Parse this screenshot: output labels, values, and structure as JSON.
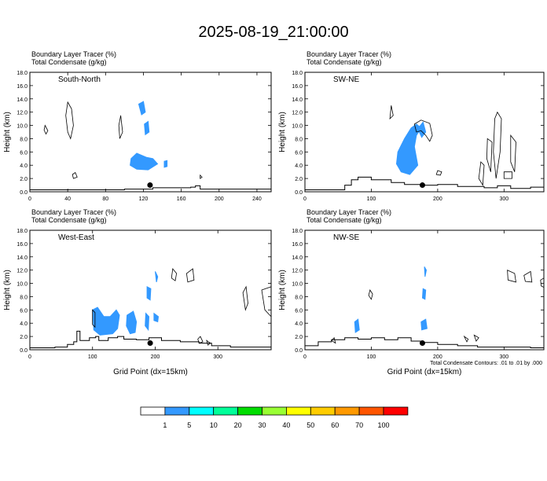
{
  "title": "2025-08-19_21:00:00",
  "colors": {
    "tracer_fill": "#3399ff",
    "terrain": "#000000",
    "contour": "#000000",
    "marker": "#000000"
  },
  "chart_data": [
    {
      "type": "area",
      "panel_label": "South-North",
      "header_lines": [
        "Boundary Layer Tracer   (%)",
        "Total Condensate   (g/kg)"
      ],
      "xlabel": "",
      "ylabel": "Height (km)",
      "xlim": [
        0,
        255
      ],
      "ylim": [
        0,
        18
      ],
      "x_ticks": [
        0,
        40,
        80,
        120,
        160,
        200,
        240
      ],
      "y_ticks": [
        "0.0",
        "2.0",
        "4.0",
        "6.0",
        "8.0",
        "10.0",
        "12.0",
        "14.0",
        "16.0",
        "18.0"
      ],
      "marker": {
        "x": 127,
        "y": 1.0
      },
      "terrain": [
        [
          0,
          0.3
        ],
        [
          50,
          0.3
        ],
        [
          100,
          0.4
        ],
        [
          120,
          0.4
        ],
        [
          130,
          0.6
        ],
        [
          150,
          0.6
        ],
        [
          170,
          0.7
        ],
        [
          175,
          0.9
        ],
        [
          180,
          0.4
        ],
        [
          255,
          0.4
        ]
      ],
      "tracer_regions": [
        [
          [
            107,
            5.0
          ],
          [
            113,
            5.8
          ],
          [
            123,
            5.2
          ],
          [
            130,
            5.0
          ],
          [
            135,
            4.2
          ],
          [
            125,
            3.3
          ],
          [
            113,
            3.4
          ],
          [
            106,
            4.0
          ]
        ],
        [
          [
            115,
            13.2
          ],
          [
            120,
            13.6
          ],
          [
            122,
            12.0
          ],
          [
            118,
            11.6
          ]
        ],
        [
          [
            121,
            10.2
          ],
          [
            125,
            10.6
          ],
          [
            126,
            9.0
          ],
          [
            122,
            8.6
          ]
        ],
        [
          [
            142,
            4.6
          ],
          [
            145,
            4.7
          ],
          [
            145,
            3.8
          ],
          [
            142,
            3.7
          ]
        ]
      ],
      "contours": [
        [
          [
            40,
            13.5
          ],
          [
            44,
            12.5
          ],
          [
            46,
            10.0
          ],
          [
            43,
            8.0
          ],
          [
            40,
            9.0
          ],
          [
            38,
            11.5
          ]
        ],
        [
          [
            16,
            10.0
          ],
          [
            19,
            9.2
          ],
          [
            17,
            8.7
          ],
          [
            15,
            9.3
          ]
        ],
        [
          [
            96,
            11.5
          ],
          [
            98,
            9.0
          ],
          [
            95,
            8.0
          ],
          [
            94,
            10.0
          ]
        ],
        [
          [
            45,
            2.6
          ],
          [
            48,
            2.9
          ],
          [
            50,
            2.2
          ],
          [
            46,
            2.0
          ]
        ],
        [
          [
            180,
            2.5
          ],
          [
            182,
            2.2
          ],
          [
            180,
            2.0
          ]
        ]
      ]
    },
    {
      "type": "area",
      "panel_label": "SW-NE",
      "header_lines": [
        "Boundary Layer Tracer   (%)",
        "Total Condensate   (g/kg)"
      ],
      "xlabel": "",
      "ylabel": "Height (km)",
      "xlim": [
        0,
        360
      ],
      "ylim": [
        0,
        18
      ],
      "x_ticks": [
        0,
        100,
        200,
        300
      ],
      "y_ticks": [
        "0.0",
        "2.0",
        "4.0",
        "6.0",
        "8.0",
        "10.0",
        "12.0",
        "14.0",
        "16.0",
        "18.0"
      ],
      "marker": {
        "x": 177,
        "y": 1.0
      },
      "terrain": [
        [
          0,
          0.3
        ],
        [
          40,
          0.3
        ],
        [
          60,
          1.0
        ],
        [
          70,
          1.8
        ],
        [
          80,
          2.2
        ],
        [
          100,
          1.8
        ],
        [
          130,
          1.4
        ],
        [
          150,
          1.1
        ],
        [
          175,
          1.0
        ],
        [
          200,
          1.1
        ],
        [
          230,
          0.8
        ],
        [
          270,
          0.6
        ],
        [
          290,
          0.9
        ],
        [
          310,
          0.5
        ],
        [
          340,
          0.7
        ],
        [
          360,
          1.0
        ]
      ],
      "tracer_regions": [
        [
          [
            140,
            6.0
          ],
          [
            150,
            8.0
          ],
          [
            160,
            9.6
          ],
          [
            168,
            10.2
          ],
          [
            175,
            9.6
          ],
          [
            168,
            8.5
          ],
          [
            165,
            6.8
          ],
          [
            170,
            4.0
          ],
          [
            158,
            2.6
          ],
          [
            145,
            3.0
          ],
          [
            138,
            4.2
          ]
        ],
        [
          [
            170,
            9.5
          ],
          [
            178,
            10.5
          ],
          [
            182,
            9.0
          ],
          [
            176,
            8.2
          ]
        ]
      ],
      "contours": [
        [
          [
            165,
            10.2
          ],
          [
            175,
            10.8
          ],
          [
            188,
            10.3
          ],
          [
            192,
            8.5
          ],
          [
            188,
            7.6
          ],
          [
            182,
            8.5
          ],
          [
            175,
            9.2
          ],
          [
            168,
            9.0
          ]
        ],
        [
          [
            130,
            13.0
          ],
          [
            133,
            11.5
          ],
          [
            128,
            11.0
          ]
        ],
        [
          [
            290,
            12.0
          ],
          [
            296,
            11.0
          ],
          [
            294,
            6.0
          ],
          [
            288,
            2.0
          ],
          [
            284,
            6.0
          ],
          [
            286,
            11.0
          ]
        ],
        [
          [
            275,
            8.0
          ],
          [
            282,
            7.5
          ],
          [
            280,
            3.0
          ],
          [
            274,
            5.0
          ]
        ],
        [
          [
            310,
            8.5
          ],
          [
            318,
            7.5
          ],
          [
            316,
            3.0
          ],
          [
            310,
            4.5
          ]
        ],
        [
          [
            265,
            4.5
          ],
          [
            270,
            4.0
          ],
          [
            268,
            1.0
          ],
          [
            262,
            2.0
          ]
        ],
        [
          [
            300,
            3.0
          ],
          [
            312,
            3.0
          ],
          [
            312,
            2.0
          ],
          [
            300,
            2.0
          ]
        ],
        [
          [
            200,
            3.2
          ],
          [
            206,
            3.0
          ],
          [
            204,
            2.5
          ],
          [
            198,
            2.6
          ]
        ]
      ]
    },
    {
      "type": "area",
      "panel_label": "West-East",
      "header_lines": [
        "Boundary Layer Tracer   (%)",
        "Total Condensate   (g/kg)"
      ],
      "xlabel": "Grid Point (dx=15km)",
      "ylabel": "Height (km)",
      "xlim": [
        0,
        385
      ],
      "ylim": [
        0,
        18
      ],
      "x_ticks": [
        0,
        100,
        200,
        300
      ],
      "y_ticks": [
        "0.0",
        "2.0",
        "4.0",
        "6.0",
        "8.0",
        "10.0",
        "12.0",
        "14.0",
        "16.0",
        "18.0"
      ],
      "marker": {
        "x": 192,
        "y": 1.0
      },
      "terrain": [
        [
          0,
          0.3
        ],
        [
          40,
          0.4
        ],
        [
          60,
          0.8
        ],
        [
          70,
          1.2
        ],
        [
          75,
          2.8
        ],
        [
          80,
          1.4
        ],
        [
          95,
          1.8
        ],
        [
          105,
          2.0
        ],
        [
          110,
          1.4
        ],
        [
          125,
          1.8
        ],
        [
          140,
          2.0
        ],
        [
          150,
          1.6
        ],
        [
          170,
          1.5
        ],
        [
          190,
          1.8
        ],
        [
          210,
          1.4
        ],
        [
          240,
          1.2
        ],
        [
          270,
          1.0
        ],
        [
          290,
          0.6
        ],
        [
          320,
          0.4
        ],
        [
          385,
          0.4
        ]
      ],
      "tracer_regions": [
        [
          [
            100,
            6.0
          ],
          [
            108,
            6.4
          ],
          [
            118,
            5.0
          ],
          [
            128,
            5.0
          ],
          [
            138,
            6.0
          ],
          [
            143,
            5.2
          ],
          [
            140,
            3.2
          ],
          [
            132,
            2.4
          ],
          [
            112,
            2.2
          ],
          [
            102,
            3.0
          ]
        ],
        [
          [
            155,
            5.2
          ],
          [
            165,
            5.8
          ],
          [
            170,
            4.2
          ],
          [
            168,
            2.6
          ],
          [
            160,
            2.4
          ],
          [
            154,
            3.6
          ]
        ],
        [
          [
            187,
            9.5
          ],
          [
            193,
            9.2
          ],
          [
            192,
            7.5
          ],
          [
            187,
            7.8
          ]
        ],
        [
          [
            198,
            5.5
          ],
          [
            205,
            5.0
          ],
          [
            204,
            4.2
          ],
          [
            198,
            4.4
          ]
        ],
        [
          [
            185,
            5.5
          ],
          [
            190,
            5.0
          ],
          [
            189,
            3.0
          ],
          [
            184,
            3.6
          ]
        ],
        [
          [
            200,
            11.8
          ],
          [
            204,
            11.0
          ],
          [
            202,
            10.2
          ]
        ]
      ],
      "contours": [
        [
          [
            228,
            12.2
          ],
          [
            234,
            11.5
          ],
          [
            232,
            10.4
          ],
          [
            226,
            10.8
          ]
        ],
        [
          [
            250,
            11.5
          ],
          [
            260,
            12.2
          ],
          [
            262,
            10.5
          ],
          [
            252,
            10.2
          ]
        ],
        [
          [
            340,
            8.6
          ],
          [
            345,
            9.5
          ],
          [
            348,
            7.0
          ],
          [
            344,
            6.0
          ]
        ],
        [
          [
            370,
            9.0
          ],
          [
            385,
            9.5
          ],
          [
            385,
            5.0
          ],
          [
            375,
            6.0
          ]
        ],
        [
          [
            268,
            1.6
          ],
          [
            272,
            2.0
          ],
          [
            276,
            1.2
          ],
          [
            270,
            1.0
          ]
        ],
        [
          [
            282,
            1.4
          ],
          [
            288,
            1.0
          ],
          [
            284,
            0.7
          ]
        ],
        [
          [
            100,
            6.0
          ],
          [
            104,
            5.6
          ],
          [
            104,
            3.4
          ],
          [
            100,
            3.8
          ]
        ]
      ]
    },
    {
      "type": "area",
      "panel_label": "NW-SE",
      "header_lines": [
        "Boundary Layer Tracer   (%)",
        "Total Condensate   (g/kg)"
      ],
      "xlabel": "Grid Point (dx=15km)",
      "ylabel": "Height (km)",
      "xlim": [
        0,
        360
      ],
      "ylim": [
        0,
        18
      ],
      "x_ticks": [
        0,
        100,
        200,
        300
      ],
      "y_ticks": [
        "0.0",
        "2.0",
        "4.0",
        "6.0",
        "8.0",
        "10.0",
        "12.0",
        "14.0",
        "16.0",
        "18.0"
      ],
      "marker": {
        "x": 177,
        "y": 1.0
      },
      "terrain": [
        [
          0,
          0.6
        ],
        [
          20,
          1.2
        ],
        [
          40,
          1.5
        ],
        [
          60,
          1.8
        ],
        [
          80,
          1.6
        ],
        [
          100,
          1.8
        ],
        [
          120,
          1.5
        ],
        [
          140,
          1.8
        ],
        [
          160,
          1.3
        ],
        [
          175,
          1.1
        ],
        [
          200,
          0.8
        ],
        [
          230,
          0.6
        ],
        [
          260,
          0.4
        ],
        [
          300,
          0.4
        ],
        [
          340,
          0.3
        ],
        [
          360,
          0.3
        ]
      ],
      "tracer_regions": [
        [
          [
            75,
            4.2
          ],
          [
            80,
            4.6
          ],
          [
            82,
            3.0
          ],
          [
            76,
            2.6
          ]
        ],
        [
          [
            175,
            4.2
          ],
          [
            182,
            4.6
          ],
          [
            184,
            3.2
          ],
          [
            176,
            3.0
          ]
        ],
        [
          [
            178,
            9.2
          ],
          [
            182,
            9.0
          ],
          [
            181,
            7.6
          ],
          [
            177,
            7.8
          ]
        ],
        [
          [
            180,
            12.5
          ],
          [
            183,
            12.0
          ],
          [
            181,
            11.0
          ]
        ]
      ],
      "contours": [
        [
          [
            305,
            12.0
          ],
          [
            316,
            11.5
          ],
          [
            318,
            10.2
          ],
          [
            306,
            10.5
          ]
        ],
        [
          [
            330,
            11.2
          ],
          [
            340,
            11.8
          ],
          [
            342,
            10.2
          ],
          [
            332,
            10.3
          ]
        ],
        [
          [
            355,
            10.5
          ],
          [
            360,
            10.8
          ],
          [
            360,
            9.4
          ],
          [
            356,
            9.6
          ]
        ],
        [
          [
            98,
            9.0
          ],
          [
            102,
            8.4
          ],
          [
            100,
            7.6
          ],
          [
            96,
            8.2
          ]
        ],
        [
          [
            40,
            1.4
          ],
          [
            44,
            1.8
          ],
          [
            46,
            1.0
          ]
        ],
        [
          [
            240,
            2.0
          ],
          [
            246,
            1.6
          ],
          [
            244,
            1.2
          ]
        ],
        [
          [
            255,
            2.2
          ],
          [
            262,
            1.8
          ],
          [
            258,
            1.3
          ]
        ]
      ]
    }
  ],
  "footnote": "Total Condensate Contours: .01 to .01 by .000",
  "colorbar": {
    "labels": [
      "1",
      "5",
      "10",
      "20",
      "30",
      "40",
      "50",
      "60",
      "70",
      "100"
    ],
    "colors": [
      "#ffffff",
      "#3399ff",
      "#00ffff",
      "#00ff99",
      "#00dd00",
      "#99ff33",
      "#ffff00",
      "#ffcc00",
      "#ff9900",
      "#ff5500",
      "#ff0000"
    ]
  }
}
